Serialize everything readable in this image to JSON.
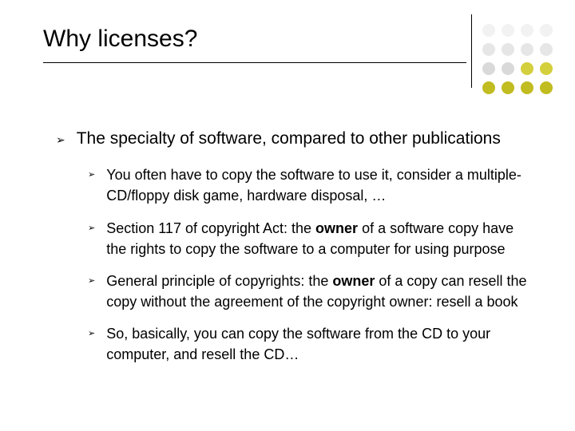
{
  "title": "Why licenses?",
  "bullet_glyph": "➢",
  "deco_colors": {
    "row1": "#f2f2f2",
    "row2": "#e6e6e6",
    "row3a": "#d9d9d9",
    "row3b": "#d4cf3c",
    "row4": "#c1bc1f"
  },
  "main": {
    "text": "The specialty of software, compared to other publications"
  },
  "subs": [
    {
      "plain": "You often have to copy the software to use it, consider a multiple-CD/floppy disk game, hardware disposal, …"
    },
    {
      "pre": "Section 117 of copyright Act: the ",
      "bold": "owner",
      "post": " of a software copy have the rights to copy the software to a computer for using purpose"
    },
    {
      "pre": "General principle of copyrights: the ",
      "bold": "owner",
      "post": " of a copy can resell the copy without the agreement of the copyright owner: resell a book"
    },
    {
      "plain": "So, basically, you can copy the software from the CD to your computer, and resell the CD…"
    }
  ]
}
